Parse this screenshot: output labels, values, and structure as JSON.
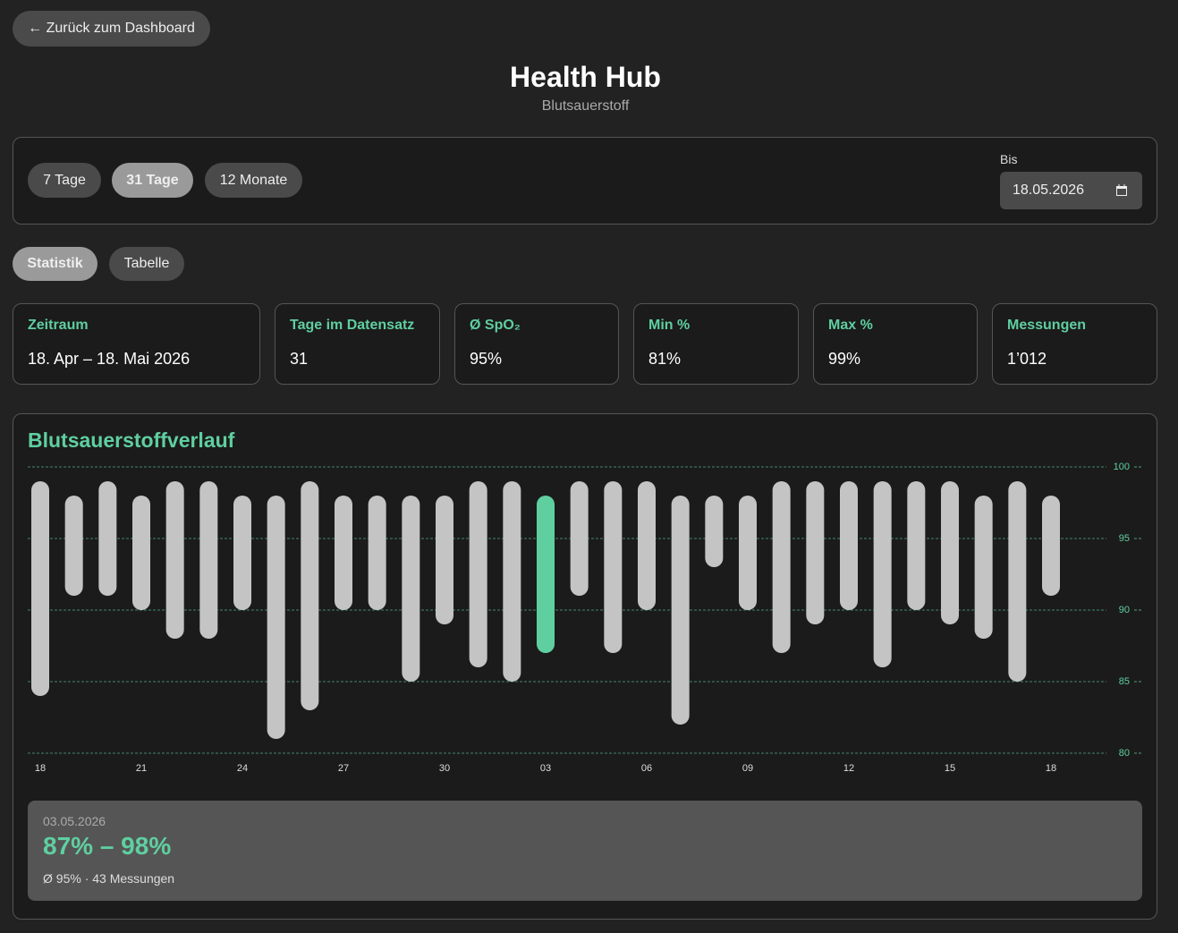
{
  "header": {
    "back": "← Zurück zum Dashboard",
    "title": "Health Hub",
    "subtitle": "Blutsauerstoff"
  },
  "filters": {
    "ranges": [
      "7 Tage",
      "31 Tage",
      "12 Monate"
    ],
    "active": 1,
    "date_label": "Bis",
    "date": "18.05.2026"
  },
  "tabs": {
    "items": [
      "Statistik",
      "Tabelle"
    ],
    "active": 0
  },
  "stats": [
    {
      "label": "Zeitraum",
      "value": "18. Apr – 18. Mai 2026"
    },
    {
      "label": "Tage im Datensatz",
      "value": "31"
    },
    {
      "label": "Ø SpO₂",
      "value": "95%"
    },
    {
      "label": "Min %",
      "value": "81%"
    },
    {
      "label": "Max %",
      "value": "99%"
    },
    {
      "label": "Messungen",
      "value": "1’012"
    }
  ],
  "chart_data": {
    "type": "range-bar",
    "title": "Blutsauerstoffverlauf",
    "categories": [
      "18",
      null,
      null,
      "21",
      null,
      null,
      "24",
      null,
      null,
      "27",
      null,
      null,
      "30",
      null,
      null,
      "03",
      null,
      null,
      "06",
      null,
      null,
      "09",
      null,
      null,
      "12",
      null,
      null,
      "15",
      null,
      null,
      "18"
    ],
    "high": [
      99,
      98,
      99,
      98,
      99,
      99,
      98,
      98,
      99,
      98,
      98,
      98,
      98,
      99,
      99,
      98,
      99,
      99,
      99,
      98,
      98,
      98,
      99,
      99,
      99,
      99,
      99,
      99,
      98,
      99,
      98
    ],
    "low": [
      84,
      91,
      91,
      90,
      88,
      88,
      90,
      81,
      83,
      90,
      90,
      85,
      89,
      86,
      85,
      87,
      91,
      87,
      90,
      82,
      93,
      90,
      87,
      89,
      90,
      86,
      90,
      89,
      88,
      85,
      91
    ],
    "color": "#c4c4c4",
    "highlight_color": "#5fcfa0",
    "selected": 15,
    "ylim": [
      80,
      100
    ],
    "yticks": [
      80,
      85,
      90,
      95,
      100
    ],
    "grid": true
  },
  "tooltip": {
    "date": "03.05.2026",
    "range": "87% – 98%",
    "detail": "Ø 95% · 43 Messungen"
  }
}
